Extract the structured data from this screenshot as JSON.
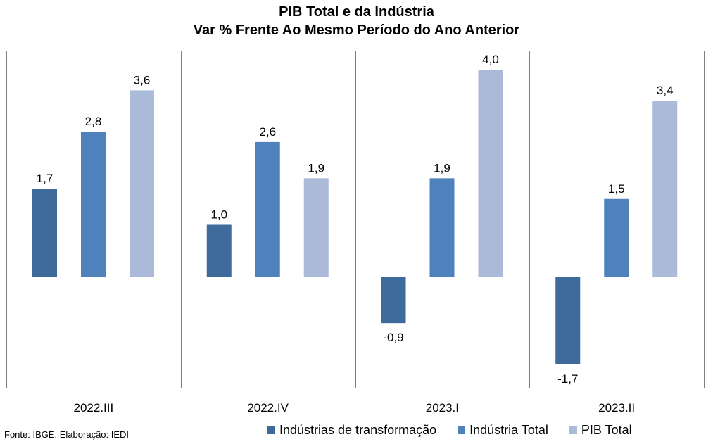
{
  "chart_data": {
    "type": "bar",
    "title": "PIB Total e da Indústria",
    "subtitle": "Var % Frente Ao Mesmo Período do Ano Anterior",
    "categories": [
      "2022.III",
      "2022.IV",
      "2023.I",
      "2023.II"
    ],
    "series": [
      {
        "name": "Indústrias de transformação",
        "color": "#3E6A9C",
        "values": [
          1.7,
          1.0,
          -0.9,
          -1.7
        ]
      },
      {
        "name": "Indústria Total",
        "color": "#4F81BD",
        "values": [
          2.8,
          2.6,
          1.9,
          1.5
        ]
      },
      {
        "name": "PIB Total",
        "color": "#AABAD8",
        "values": [
          3.6,
          1.9,
          4.0,
          3.4
        ]
      }
    ],
    "data_labels": [
      [
        "1,7",
        "2,8",
        "3,6"
      ],
      [
        "1,0",
        "2,6",
        "1,9"
      ],
      [
        "-0,9",
        "1,9",
        "4,0"
      ],
      [
        "-1,7",
        "1,5",
        "3,4"
      ]
    ],
    "ylim": [
      -2.1,
      4.4
    ],
    "legend_position": "bottom",
    "grid": false
  },
  "source": "Fonte: IBGE. Elaboração: IEDI"
}
